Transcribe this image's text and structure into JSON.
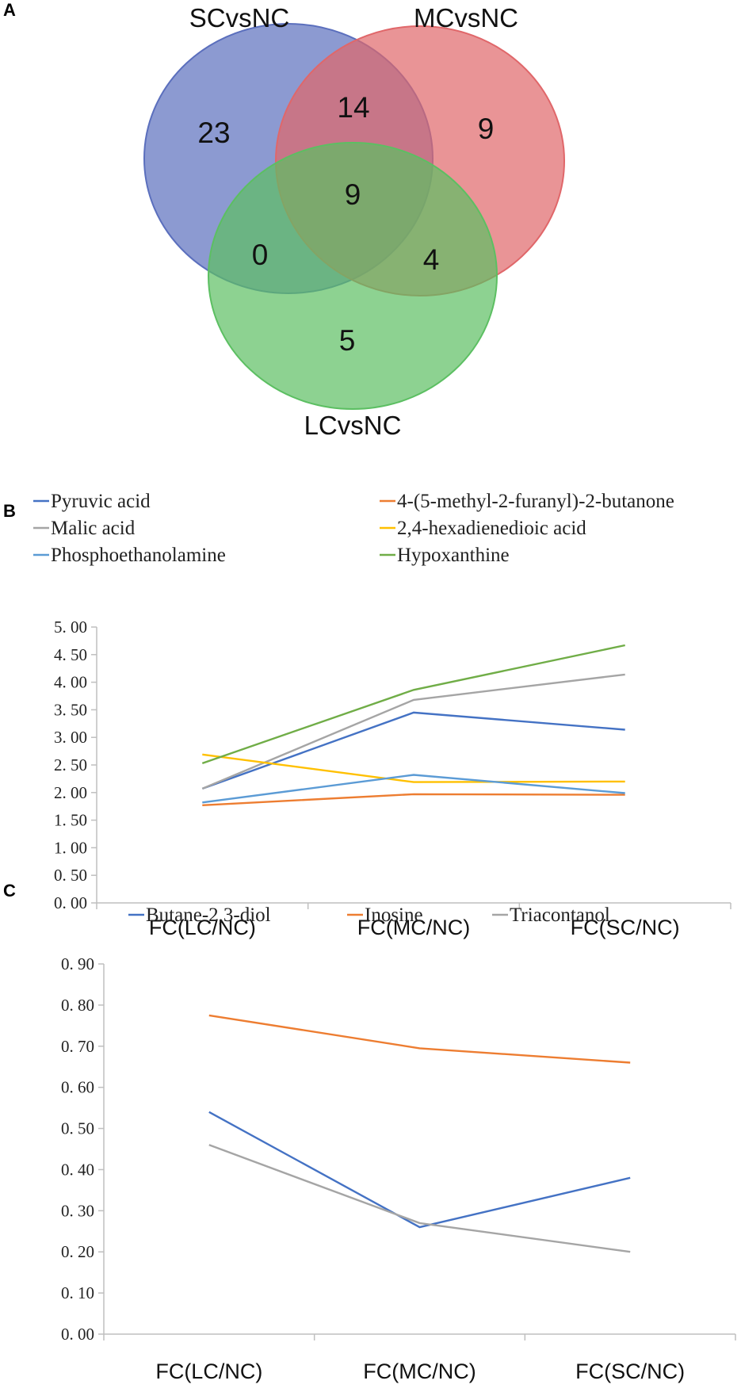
{
  "colors": {
    "venn_sc": "#5b6fbd",
    "venn_mc": "#e0676a",
    "venn_lc": "#5cbf62"
  },
  "chart_data": [
    {
      "panel": "A",
      "type": "venn",
      "sets": [
        {
          "name": "SCvsNC",
          "color": "#5b6fbd"
        },
        {
          "name": "MCvsNC",
          "color": "#e0676a"
        },
        {
          "name": "LCvsNC",
          "color": "#5cbf62"
        }
      ],
      "regions": {
        "sc_only": 23,
        "mc_only": 9,
        "lc_only": 5,
        "sc_mc": 14,
        "sc_lc": 0,
        "mc_lc": 4,
        "all": 9
      }
    },
    {
      "panel": "B",
      "type": "line",
      "categories": [
        "FC(LC/NC)",
        "FC(MC/NC)",
        "FC(SC/NC)"
      ],
      "ylim": [
        0,
        5
      ],
      "yticks": [
        "0. 00",
        "0. 50",
        "1. 00",
        "1. 50",
        "2. 00",
        "2. 50",
        "3. 00",
        "3. 50",
        "4. 00",
        "4. 50",
        "5. 00"
      ],
      "ytick_values": [
        0,
        0.5,
        1,
        1.5,
        2,
        2.5,
        3,
        3.5,
        4,
        4.5,
        5
      ],
      "legend_position": "top",
      "series": [
        {
          "name": "Pyruvic acid",
          "color": "#4472c4",
          "values": [
            2.07,
            3.45,
            3.14
          ]
        },
        {
          "name": "4-(5-methyl-2-furanyl)-2-butanone",
          "color": "#ed7d31",
          "values": [
            1.77,
            1.97,
            1.96
          ]
        },
        {
          "name": "Malic acid",
          "color": "#a5a5a5",
          "values": [
            2.07,
            3.68,
            4.14
          ]
        },
        {
          "name": "2,4-hexadienedioic acid",
          "color": "#ffc000",
          "values": [
            2.69,
            2.19,
            2.2
          ]
        },
        {
          "name": "Phosphoethanolamine",
          "color": "#5b9bd5",
          "values": [
            1.82,
            2.32,
            1.99
          ]
        },
        {
          "name": "Hypoxanthine",
          "color": "#70ad47",
          "values": [
            2.53,
            3.86,
            4.67
          ]
        }
      ]
    },
    {
      "panel": "C",
      "type": "line",
      "categories": [
        "FC(LC/NC)",
        "FC(MC/NC)",
        "FC(SC/NC)"
      ],
      "ylim": [
        0,
        0.9
      ],
      "yticks": [
        "0. 00",
        "0. 10",
        "0. 20",
        "0. 30",
        "0. 40",
        "0. 50",
        "0. 60",
        "0. 70",
        "0. 80",
        "0. 90"
      ],
      "ytick_values": [
        0,
        0.1,
        0.2,
        0.3,
        0.4,
        0.5,
        0.6,
        0.7,
        0.8,
        0.9
      ],
      "legend_position": "top",
      "series": [
        {
          "name": "Butane-2,3-diol",
          "color": "#4472c4",
          "values": [
            0.54,
            0.26,
            0.38
          ]
        },
        {
          "name": "Inosine",
          "color": "#ed7d31",
          "values": [
            0.775,
            0.695,
            0.66
          ]
        },
        {
          "name": "Triacontanol",
          "color": "#a5a5a5",
          "values": [
            0.46,
            0.27,
            0.2
          ]
        }
      ]
    }
  ]
}
